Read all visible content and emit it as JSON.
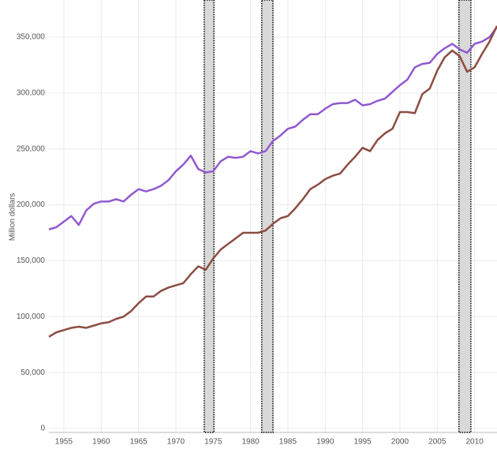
{
  "chart_data": {
    "type": "line",
    "y_label": "Million dollars",
    "x": [
      1953,
      1954,
      1955,
      1956,
      1957,
      1958,
      1959,
      1960,
      1961,
      1962,
      1963,
      1964,
      1965,
      1966,
      1967,
      1968,
      1969,
      1970,
      1971,
      1972,
      1973,
      1974,
      1975,
      1976,
      1977,
      1978,
      1979,
      1980,
      1981,
      1982,
      1983,
      1984,
      1985,
      1986,
      1987,
      1988,
      1989,
      1990,
      1991,
      1992,
      1993,
      1994,
      1995,
      1996,
      1997,
      1998,
      1999,
      2000,
      2001,
      2002,
      2003,
      2004,
      2005,
      2006,
      2007,
      2008,
      2009,
      2010,
      2011,
      2012,
      2013
    ],
    "series": [
      {
        "color": "#9159cf",
        "values": [
          178000,
          180000,
          185000,
          190000,
          182000,
          195000,
          201000,
          203000,
          203000,
          205000,
          203000,
          209000,
          214000,
          212000,
          214000,
          217000,
          222000,
          230000,
          236000,
          244000,
          232000,
          229000,
          230000,
          239000,
          243000,
          242000,
          243000,
          248000,
          246000,
          248000,
          257000,
          262000,
          268000,
          270000,
          276000,
          281000,
          281000,
          286000,
          290000,
          291000,
          291000,
          294000,
          289000,
          290000,
          293000,
          295000,
          301000,
          307000,
          312000,
          323000,
          326000,
          327000,
          335000,
          340000,
          344000,
          339000,
          336000,
          344000,
          346000,
          350000,
          359000
        ]
      },
      {
        "color": "#8c4d42",
        "values": [
          82000,
          86000,
          88000,
          90000,
          91000,
          90000,
          92000,
          94000,
          95000,
          98000,
          100000,
          105000,
          112000,
          118000,
          118000,
          123000,
          126000,
          128000,
          130000,
          138000,
          145000,
          142000,
          152000,
          160000,
          165000,
          170000,
          175000,
          175000,
          175000,
          177000,
          183000,
          188000,
          190000,
          197000,
          205000,
          214000,
          218000,
          223000,
          226000,
          228000,
          236000,
          243000,
          251000,
          248000,
          258000,
          264000,
          268000,
          283000,
          283000,
          282000,
          299000,
          304000,
          320000,
          332000,
          338000,
          333000,
          319000,
          323000,
          335000,
          346000,
          360000
        ]
      }
    ],
    "shaded_periods": [
      [
        1973.8,
        1975.1
      ],
      [
        1981.5,
        1983.0
      ],
      [
        2007.9,
        2009.5
      ]
    ],
    "shade_color": "#d9d9d9",
    "xlim": [
      1953,
      2013
    ],
    "ylim": [
      0,
      380000
    ],
    "xticks": [
      1955,
      1960,
      1965,
      1970,
      1975,
      1980,
      1985,
      1990,
      1995,
      2000,
      2005,
      2010
    ],
    "yticks": [
      0,
      {
        "value": 50000,
        "label": "50,000"
      },
      {
        "value": 100000,
        "label": "100,000"
      },
      {
        "value": 150000,
        "label": "150,000"
      },
      {
        "value": 200000,
        "label": "200,000"
      },
      {
        "value": 250000,
        "label": "250,000"
      },
      {
        "value": 300000,
        "label": "300,000"
      },
      {
        "value": 350000,
        "label": "350,000"
      }
    ],
    "grid": true
  }
}
